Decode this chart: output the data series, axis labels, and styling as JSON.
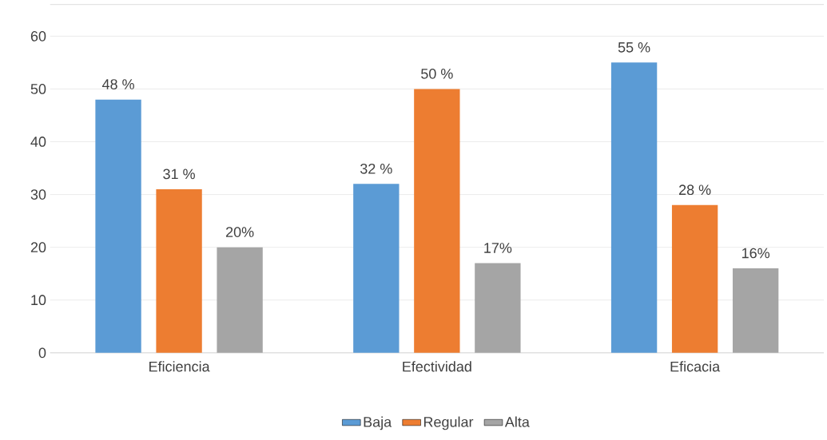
{
  "chart_data": {
    "type": "bar",
    "categories": [
      "Eficiencia",
      "Efectividad",
      "Eficacia"
    ],
    "series": [
      {
        "name": "Baja",
        "color": "#5b9bd5",
        "values": [
          48,
          32,
          55
        ],
        "value_labels": [
          "48 %",
          "32 %",
          "55 %"
        ]
      },
      {
        "name": "Regular",
        "color": "#ed7d31",
        "values": [
          31,
          50,
          28
        ],
        "value_labels": [
          "31 %",
          "50 %",
          "28 %"
        ]
      },
      {
        "name": "Alta",
        "color": "#a5a5a5",
        "values": [
          20,
          17,
          16
        ],
        "value_labels": [
          "20%",
          "17%",
          "16%"
        ]
      }
    ],
    "ylim": [
      0,
      66
    ],
    "yticks": [
      0,
      10,
      20,
      30,
      40,
      50,
      60
    ],
    "grid": "y",
    "legend": "bottom"
  }
}
